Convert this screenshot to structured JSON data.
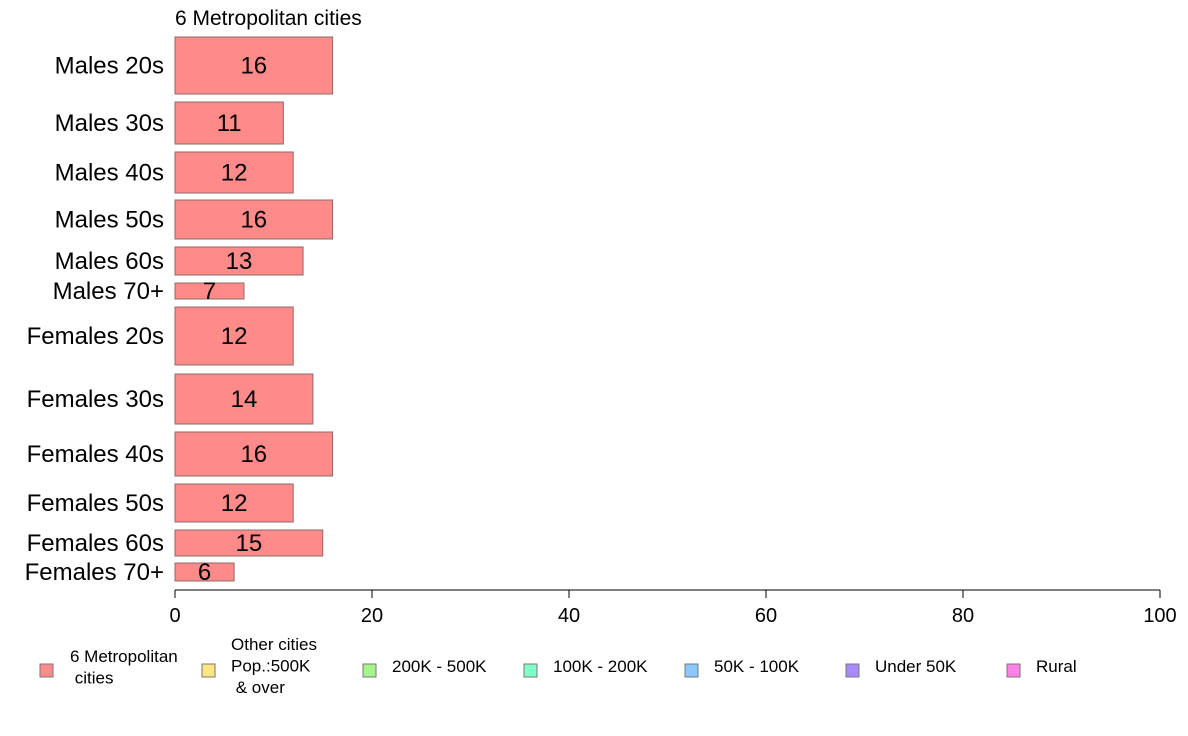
{
  "chart_data": {
    "type": "bar",
    "orientation": "horizontal",
    "title": "6 Metropolitan cities",
    "categories": [
      "Males 20s",
      "Males 30s",
      "Males 40s",
      "Males 50s",
      "Males 60s",
      "Males 70+",
      "Females 20s",
      "Females 30s",
      "Females 40s",
      "Females 50s",
      "Females 60s",
      "Females 70+"
    ],
    "series": [
      {
        "name": "6 Metropolitan cities",
        "color": "#ff8a8a",
        "values": [
          16,
          11,
          12,
          16,
          13,
          7,
          12,
          14,
          16,
          12,
          15,
          6
        ],
        "labels": [
          "16",
          "11",
          "12",
          "16",
          "13",
          "7",
          "12",
          "14",
          "16",
          "12",
          "15",
          "6"
        ]
      }
    ],
    "xlim": [
      0,
      100
    ],
    "xticks": [
      "0",
      "20",
      "40",
      "60",
      "80",
      "100"
    ],
    "grid": false,
    "legend_position": "bottom",
    "legend": [
      {
        "label": "6 Metropolitan\n cities",
        "color": "#ff8a8a"
      },
      {
        "label": "Other cities\nPop.:500K\n & over",
        "color": "#ffe680"
      },
      {
        "label": "200K - 500K",
        "color": "#a6f58a"
      },
      {
        "label": "100K - 200K",
        "color": "#80ffc8"
      },
      {
        "label": "50K - 100K",
        "color": "#8ac8ff"
      },
      {
        "label": "Under 50K",
        "color": "#a88aff"
      },
      {
        "label": "Rural",
        "color": "#ff80e6"
      }
    ]
  }
}
